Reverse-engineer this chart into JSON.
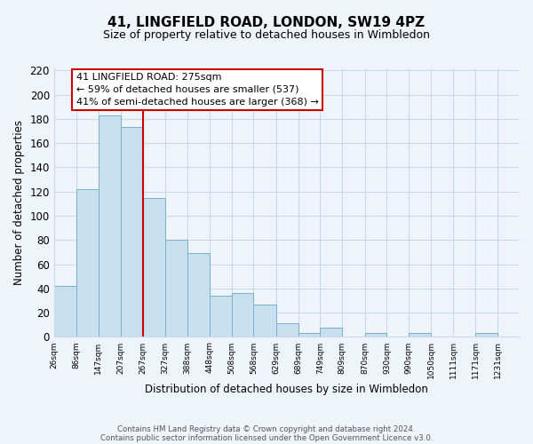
{
  "title": "41, LINGFIELD ROAD, LONDON, SW19 4PZ",
  "subtitle": "Size of property relative to detached houses in Wimbledon",
  "xlabel": "Distribution of detached houses by size in Wimbledon",
  "ylabel": "Number of detached properties",
  "bar_color": "#c8dff0",
  "bar_edge_color": "#7ab0cc",
  "grid_color": "#c8dae8",
  "vline_x": 267,
  "vline_color": "#cc0000",
  "categories": [
    "26sqm",
    "86sqm",
    "147sqm",
    "207sqm",
    "267sqm",
    "327sqm",
    "388sqm",
    "448sqm",
    "508sqm",
    "568sqm",
    "629sqm",
    "689sqm",
    "749sqm",
    "809sqm",
    "870sqm",
    "930sqm",
    "990sqm",
    "1050sqm",
    "1111sqm",
    "1171sqm",
    "1231sqm"
  ],
  "bin_edges": [
    26,
    86,
    147,
    207,
    267,
    327,
    388,
    448,
    508,
    568,
    629,
    689,
    749,
    809,
    870,
    930,
    990,
    1050,
    1111,
    1171,
    1231,
    1291
  ],
  "values": [
    42,
    122,
    183,
    173,
    115,
    80,
    69,
    34,
    36,
    27,
    11,
    3,
    8,
    0,
    3,
    0,
    3,
    0,
    0,
    3,
    0
  ],
  "ylim": [
    0,
    222
  ],
  "yticks": [
    0,
    20,
    40,
    60,
    80,
    100,
    120,
    140,
    160,
    180,
    200,
    220
  ],
  "annotation_title": "41 LINGFIELD ROAD: 275sqm",
  "annotation_line1": "← 59% of detached houses are smaller (537)",
  "annotation_line2": "41% of semi-detached houses are larger (368) →",
  "annotation_box_color": "#ffffff",
  "annotation_box_edge_color": "#cc0000",
  "footer_line1": "Contains HM Land Registry data © Crown copyright and database right 2024.",
  "footer_line2": "Contains public sector information licensed under the Open Government Licence v3.0.",
  "background_color": "#eef4fa"
}
